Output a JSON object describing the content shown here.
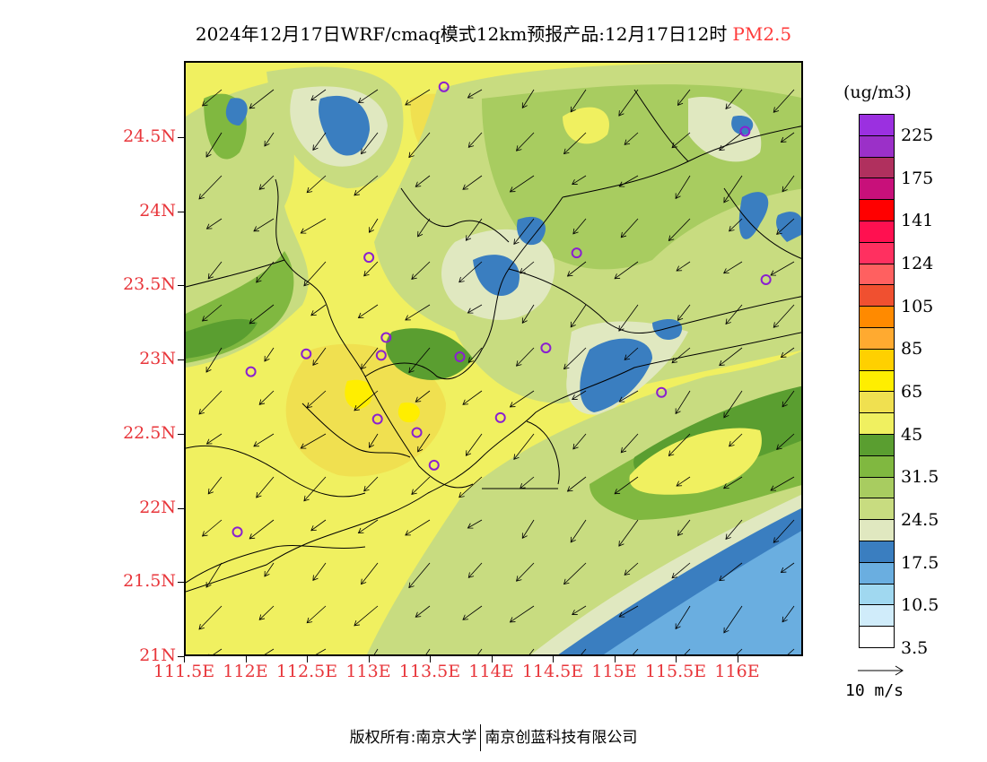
{
  "title": {
    "main": "2024年12月17日WRF/cmaq模式12km预报产品:12月17日12时",
    "pollutant": "PM2.5",
    "pollutant_color": "#ff3b3b"
  },
  "axes": {
    "lat_labels": [
      "24.5N",
      "24N",
      "23.5N",
      "23N",
      "22.5N",
      "22N",
      "21.5N",
      "21N"
    ],
    "lon_labels": [
      "111.5E",
      "112E",
      "112.5E",
      "113E",
      "113.5E",
      "114E",
      "114.5E",
      "115E",
      "115.5E",
      "116E"
    ],
    "label_color": "#e8363b"
  },
  "colorbar": {
    "unit": "(ug/m3)",
    "colors": [
      "#9b30e0",
      "#9b30c8",
      "#b0305e",
      "#c8107a",
      "#ff0000",
      "#ff1050",
      "#ff3060",
      "#ff6060",
      "#f05030",
      "#ff8a00",
      "#ffaa30",
      "#ffd000",
      "#ffee00",
      "#f0e050",
      "#f0f060",
      "#5a9e30",
      "#80b840",
      "#a8cc60",
      "#c8dc80",
      "#e0e8c0",
      "#3a7ec0",
      "#6aaee0",
      "#a0d8f0",
      "#d0ecfa",
      "#ffffff"
    ],
    "labels": [
      "225",
      "175",
      "141",
      "124",
      "105",
      "85",
      "65",
      "45",
      "31.5",
      "24.5",
      "17.5",
      "10.5",
      "3.5"
    ]
  },
  "reference_vector": {
    "label": "10 m/s"
  },
  "footer": {
    "left": "版权所有:南京大学",
    "right": "南京创蓝科技有限公司"
  },
  "stations": [
    {
      "lon": 113.6,
      "lat": 24.85
    },
    {
      "lon": 116.05,
      "lat": 24.55
    },
    {
      "lon": 112.99,
      "lat": 23.7
    },
    {
      "lon": 114.68,
      "lat": 23.73
    },
    {
      "lon": 116.22,
      "lat": 23.55
    },
    {
      "lon": 113.13,
      "lat": 23.16
    },
    {
      "lon": 113.09,
      "lat": 23.04
    },
    {
      "lon": 112.48,
      "lat": 23.05
    },
    {
      "lon": 112.03,
      "lat": 22.93
    },
    {
      "lon": 113.73,
      "lat": 23.03
    },
    {
      "lon": 114.43,
      "lat": 23.09
    },
    {
      "lon": 115.37,
      "lat": 22.79
    },
    {
      "lon": 113.06,
      "lat": 22.61
    },
    {
      "lon": 113.38,
      "lat": 22.52
    },
    {
      "lon": 114.06,
      "lat": 22.62
    },
    {
      "lon": 113.52,
      "lat": 22.3
    },
    {
      "lon": 111.92,
      "lat": 21.85
    }
  ]
}
